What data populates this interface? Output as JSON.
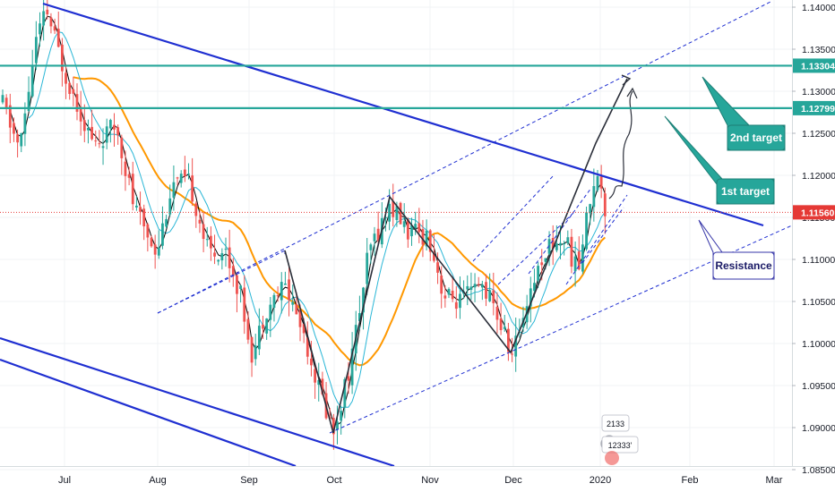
{
  "chart_data": {
    "type": "candlestick",
    "title": "",
    "xlabel": "",
    "ylabel": "",
    "x_tick_labels": [
      "Jul",
      "Aug",
      "Sep",
      "Oct",
      "Nov",
      "Dec",
      "2020",
      "Feb",
      "Mar"
    ],
    "y_tick_labels": [
      "1.14000",
      "1.13500",
      "1.13000",
      "1.12500",
      "1.12000",
      "1.11500",
      "1.11000",
      "1.10500",
      "1.10000",
      "1.09500",
      "1.09000",
      "1.08500"
    ],
    "ylim": [
      1.0845,
      1.1405
    ],
    "current_price": {
      "label": "1.11560",
      "value": 1.1156,
      "color": "#e53935"
    },
    "horizontal_levels": [
      {
        "label": "1.13304",
        "value": 1.13304,
        "color": "#26a69a"
      },
      {
        "label": "1.12799",
        "value": 1.12799,
        "color": "#26a69a"
      }
    ],
    "callouts": [
      {
        "label": "2nd target",
        "style": "teal"
      },
      {
        "label": "1st target",
        "style": "teal"
      },
      {
        "label": "Resistance",
        "style": "outline"
      }
    ],
    "colors": {
      "up": "#26a69a",
      "down": "#ef5350",
      "trendline": "#1f2fd1",
      "ma_fast": "#000000",
      "ma_mid": "#29b6d6",
      "ma_slow": "#ff9800",
      "label_teal": "#26a69a",
      "label_outline": "#3636a8",
      "grid": "#f0f3f5",
      "axis_text": "#131722"
    },
    "candle_overlay_badge": {
      "line1": "2133",
      "line2": "12333'"
    }
  }
}
